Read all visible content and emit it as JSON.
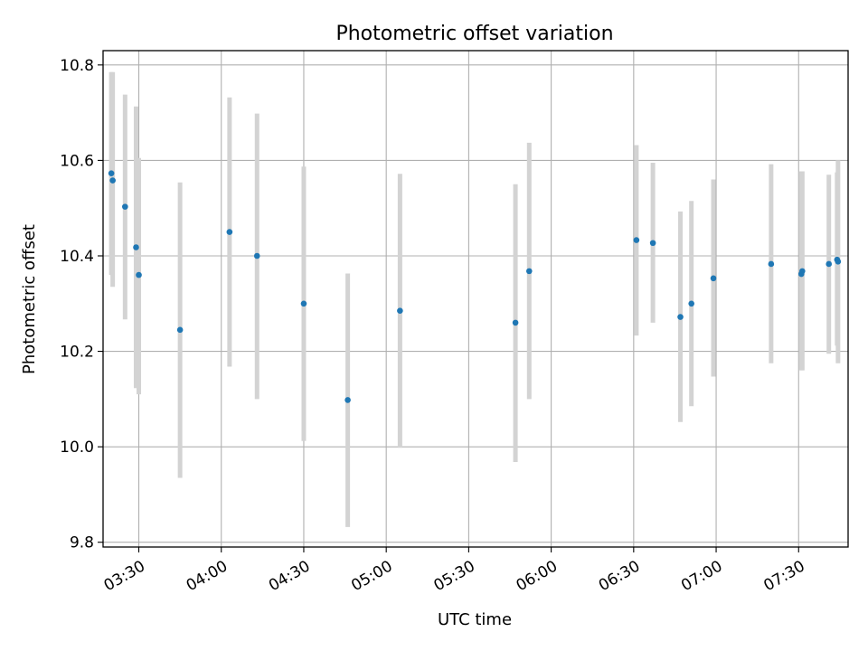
{
  "chart_data": {
    "type": "scatter",
    "title": "Photometric offset variation",
    "xlabel": "UTC time",
    "ylabel": "Photometric offset",
    "xlim": [
      "03:17",
      "07:48"
    ],
    "ylim": [
      9.79,
      10.83
    ],
    "grid": true,
    "legend": "none",
    "x_ticks": [
      "03:30",
      "04:00",
      "04:30",
      "05:00",
      "05:30",
      "06:00",
      "06:30",
      "07:00",
      "07:30"
    ],
    "y_ticks": [
      9.8,
      10.0,
      10.2,
      10.4,
      10.6,
      10.8
    ],
    "series": [
      {
        "x": [
          "03:20",
          "03:20:30",
          "03:25",
          "03:29",
          "03:30",
          "03:45",
          "04:03",
          "04:13",
          "04:30",
          "04:46",
          "05:05",
          "05:47",
          "05:52",
          "06:31",
          "06:37",
          "06:47",
          "06:51",
          "06:59",
          "07:20",
          "07:31",
          "07:31:20",
          "07:41",
          "07:44",
          "07:44:20"
        ],
        "y": [
          10.573,
          10.558,
          10.503,
          10.418,
          10.36,
          10.245,
          10.45,
          10.4,
          10.3,
          10.098,
          10.285,
          10.26,
          10.368,
          10.433,
          10.427,
          10.272,
          10.3,
          10.353,
          10.383,
          10.362,
          10.368,
          10.383,
          10.392,
          10.388
        ],
        "error_low": [
          10.36,
          10.335,
          10.267,
          10.123,
          10.11,
          9.935,
          10.168,
          10.1,
          10.012,
          9.832,
          9.998,
          9.968,
          10.1,
          10.233,
          10.26,
          10.052,
          10.085,
          10.147,
          10.175,
          10.16,
          10.16,
          10.195,
          10.212,
          10.175
        ],
        "error_high": [
          10.785,
          10.785,
          10.738,
          10.713,
          10.605,
          10.554,
          10.732,
          10.698,
          10.587,
          10.363,
          10.572,
          10.55,
          10.637,
          10.632,
          10.595,
          10.493,
          10.515,
          10.56,
          10.592,
          10.577,
          10.577,
          10.57,
          10.575,
          10.6
        ]
      }
    ]
  },
  "colors": {
    "marker": "#1f77b4",
    "errorbar": "#d3d3d3",
    "grid": "#b0b0b0",
    "axes": "#000000"
  }
}
